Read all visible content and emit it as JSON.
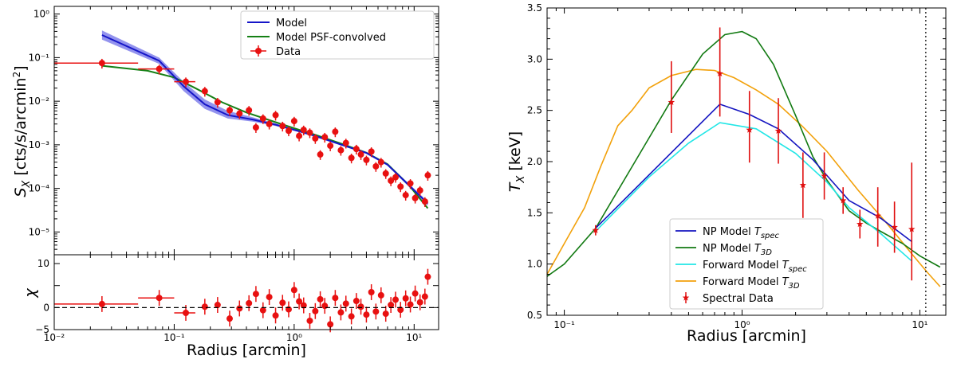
{
  "chart_data": [
    {
      "type": "line",
      "title": "",
      "xlabel": "Radius [arcmin]",
      "ylabel_main": "S_X [cts/s/arcmin²]",
      "ylabel_resid": "χ",
      "xscale": "log",
      "yscale_main": "log",
      "xlim": [
        0.01,
        16
      ],
      "ylim_main": [
        3e-06,
        1.5
      ],
      "ylim_resid": [
        -5,
        12
      ],
      "xtick_labels": [
        "10⁻²",
        "10⁻¹",
        "10⁰",
        "10¹"
      ],
      "ytick_labels_main": [
        "10⁰",
        "10⁻¹",
        "10⁻²",
        "10⁻³",
        "10⁻⁴",
        "10⁻⁵"
      ],
      "ytick_labels_resid": [
        "10",
        "0",
        "−5"
      ],
      "legend_position": "top-right",
      "legend": [
        "Model",
        "Model PSF-convolved",
        "Data"
      ],
      "series": [
        {
          "name": "Model",
          "color": "#1515c8",
          "x": [
            0.025,
            0.075,
            0.12,
            0.18,
            0.28,
            0.45,
            0.7,
            1.0,
            1.5,
            2.5,
            4,
            6,
            9,
            13
          ],
          "y": [
            0.33,
            0.085,
            0.022,
            0.0085,
            0.0048,
            0.0038,
            0.0029,
            0.0022,
            0.0016,
            0.001,
            0.00065,
            0.00035,
            0.00012,
            4.5e-05
          ],
          "band_lo": [
            0.26,
            0.072,
            0.017,
            0.0067,
            0.004,
            0.0034,
            0.0027,
            0.0021,
            0.0015,
            0.00095,
            0.00062,
            0.00033,
            0.00011,
            4e-05
          ],
          "band_hi": [
            0.42,
            0.1,
            0.028,
            0.011,
            0.006,
            0.0043,
            0.0031,
            0.0023,
            0.0017,
            0.00105,
            0.00068,
            0.00037,
            0.00013,
            5e-05
          ]
        },
        {
          "name": "Model PSF-convolved",
          "color": "#158015",
          "x": [
            0.025,
            0.06,
            0.1,
            0.15,
            0.25,
            0.4,
            0.7,
            1.0,
            1.5,
            2.5,
            4,
            6,
            9,
            13
          ],
          "y": [
            0.065,
            0.05,
            0.035,
            0.02,
            0.0095,
            0.0055,
            0.0033,
            0.0024,
            0.0017,
            0.00105,
            0.00066,
            0.00036,
            0.00012,
            3.5e-05
          ]
        },
        {
          "name": "Data",
          "color": "#e81010",
          "x": [
            0.025,
            0.075,
            0.125,
            0.18,
            0.23,
            0.29,
            0.35,
            0.42,
            0.48,
            0.55,
            0.62,
            0.7,
            0.8,
            0.9,
            1.0,
            1.1,
            1.2,
            1.35,
            1.5,
            1.65,
            1.8,
            2.0,
            2.2,
            2.45,
            2.7,
            3.0,
            3.3,
            3.6,
            4.0,
            4.4,
            4.8,
            5.3,
            5.8,
            6.4,
            7.0,
            7.7,
            8.5,
            9.3,
            10.2,
            11.2,
            12.3,
            13.0
          ],
          "y": [
            0.075,
            0.055,
            0.028,
            0.017,
            0.0095,
            0.0062,
            0.0052,
            0.0062,
            0.0025,
            0.004,
            0.003,
            0.0048,
            0.0027,
            0.0021,
            0.0035,
            0.0016,
            0.0022,
            0.0019,
            0.0014,
            0.0006,
            0.0015,
            0.00095,
            0.002,
            0.00075,
            0.0011,
            0.0005,
            0.0008,
            0.0006,
            0.00045,
            0.0007,
            0.00032,
            0.0004,
            0.00022,
            0.00015,
            0.00018,
            0.00011,
            7e-05,
            0.00013,
            6e-05,
            9e-05,
            5e-05,
            0.0002
          ],
          "xerr_lo": [
            0.015,
            0.025,
            0.025
          ],
          "xerr_hi": [
            0.025,
            0.025,
            0.025
          ],
          "yerr_frac": 0.25
        },
        {
          "name": "Residual χ",
          "color": "#e81010",
          "x": [
            0.025,
            0.075,
            0.125,
            0.18,
            0.23,
            0.29,
            0.35,
            0.42,
            0.48,
            0.55,
            0.62,
            0.7,
            0.8,
            0.9,
            1.0,
            1.1,
            1.2,
            1.35,
            1.5,
            1.65,
            1.8,
            2.0,
            2.2,
            2.45,
            2.7,
            3.0,
            3.3,
            3.6,
            4.0,
            4.4,
            4.8,
            5.3,
            5.8,
            6.4,
            7.0,
            7.7,
            8.5,
            9.3,
            10.2,
            11.2,
            12.3,
            13.0
          ],
          "y": [
            0.8,
            2.2,
            -1.2,
            0.2,
            0.6,
            -2.5,
            -0.2,
            1.0,
            3.1,
            -0.6,
            2.4,
            -1.8,
            1.1,
            -0.4,
            4.0,
            1.4,
            0.5,
            -3.0,
            -0.8,
            1.9,
            0.4,
            -3.8,
            2.2,
            -1.1,
            0.9,
            -2.0,
            1.5,
            0.2,
            -1.6,
            3.5,
            -0.9,
            2.8,
            -1.4,
            0.6,
            1.8,
            -0.5,
            2.1,
            0.7,
            3.2,
            1.2,
            2.5,
            7.0
          ],
          "yerr": 1.8
        },
        {
          "name": "Zero line",
          "style": "dashed",
          "y": 0
        }
      ]
    },
    {
      "type": "line",
      "title": "",
      "xlabel": "Radius [arcmin]",
      "ylabel": "T_X [keV]",
      "xscale": "log",
      "xlim": [
        0.08,
        14
      ],
      "ylim": [
        0.5,
        3.5
      ],
      "xtick_labels": [
        "10⁻¹",
        "10⁰",
        "10¹"
      ],
      "ytick_labels": [
        "0.5",
        "1.0",
        "1.5",
        "2.0",
        "2.5",
        "3.0",
        "3.5"
      ],
      "legend_position": "bottom-center",
      "legend": [
        {
          "text": "NP Model ",
          "sym": "T",
          "sub": "spec"
        },
        {
          "text": "NP Model ",
          "sym": "T",
          "sub": "3D"
        },
        {
          "text": "Forward Model ",
          "sym": "T",
          "sub": "spec"
        },
        {
          "text": "Forward Model ",
          "sym": "T",
          "sub": "3D"
        },
        {
          "text": "Spectral Data",
          "sym": "",
          "sub": ""
        }
      ],
      "vline_x": 10.8,
      "series": [
        {
          "name": "NP Model T_spec",
          "color": "#1414c0",
          "x": [
            0.15,
            0.75,
            1.1,
            1.6,
            2.5,
            4,
            6,
            9
          ],
          "y": [
            1.35,
            2.56,
            2.46,
            2.32,
            2.02,
            1.62,
            1.45,
            1.22
          ]
        },
        {
          "name": "NP Model T_3D",
          "color": "#127a12",
          "x": [
            0.08,
            0.1,
            0.15,
            0.25,
            0.4,
            0.6,
            0.8,
            1.0,
            1.2,
            1.5,
            2.0,
            2.5,
            3.0,
            4.0,
            5.0,
            6.0,
            8.0,
            10.0,
            13.0
          ],
          "y": [
            0.88,
            1.0,
            1.35,
            2.0,
            2.6,
            3.05,
            3.24,
            3.27,
            3.2,
            2.95,
            2.45,
            2.05,
            1.82,
            1.52,
            1.4,
            1.32,
            1.2,
            1.08,
            0.97
          ]
        },
        {
          "name": "Forward Model T_spec",
          "color": "#22e6e6",
          "x": [
            0.15,
            0.3,
            0.5,
            0.75,
            1.2,
            2.0,
            3.0,
            4.0,
            6.0,
            9.0
          ],
          "y": [
            1.32,
            1.85,
            2.18,
            2.38,
            2.32,
            2.08,
            1.8,
            1.55,
            1.3,
            1.03
          ]
        },
        {
          "name": "Forward Model T_3D",
          "color": "#f2a10b",
          "x": [
            0.08,
            0.1,
            0.13,
            0.16,
            0.2,
            0.24,
            0.3,
            0.4,
            0.55,
            0.7,
            0.9,
            1.2,
            1.6,
            2.2,
            3.0,
            4.5,
            6.5,
            9.0,
            11.0,
            13.0
          ],
          "y": [
            0.9,
            1.2,
            1.55,
            1.95,
            2.35,
            2.5,
            2.72,
            2.84,
            2.9,
            2.89,
            2.82,
            2.7,
            2.56,
            2.34,
            2.1,
            1.72,
            1.4,
            1.1,
            0.92,
            0.78
          ]
        },
        {
          "name": "Spectral Data",
          "color": "#e01010",
          "x": [
            0.15,
            0.4,
            0.75,
            1.1,
            1.6,
            2.2,
            2.9,
            3.7,
            4.6,
            5.8,
            7.2,
            9.0
          ],
          "y": [
            1.33,
            2.58,
            2.86,
            2.31,
            2.3,
            1.77,
            1.86,
            1.62,
            1.39,
            1.47,
            1.36,
            1.34
          ],
          "yerr_lo": [
            0.05,
            0.3,
            0.42,
            0.32,
            0.32,
            0.32,
            0.23,
            0.13,
            0.14,
            0.3,
            0.25,
            0.5
          ],
          "yerr_hi": [
            0.05,
            0.4,
            0.45,
            0.38,
            0.32,
            0.32,
            0.23,
            0.13,
            0.14,
            0.28,
            0.25,
            0.65
          ]
        }
      ]
    }
  ]
}
